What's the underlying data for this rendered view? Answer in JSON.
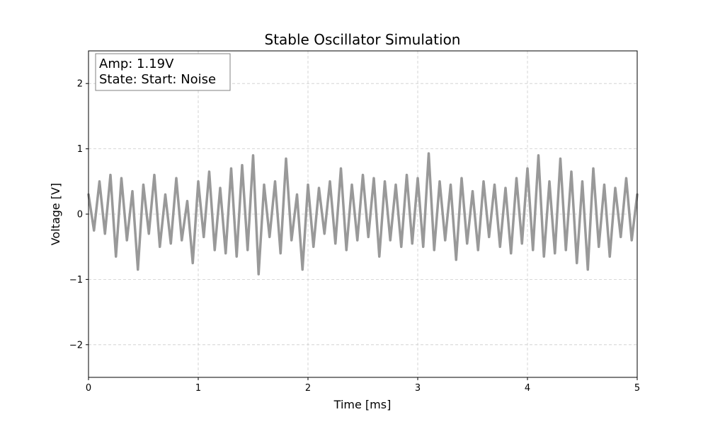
{
  "chart_data": {
    "type": "line",
    "title": "Stable Oscillator Simulation",
    "xlabel": "Time [ms]",
    "ylabel": "Voltage [V]",
    "xlim": [
      0,
      5
    ],
    "ylim": [
      -2.5,
      2.5
    ],
    "xticks": [
      0,
      1,
      2,
      3,
      4,
      5
    ],
    "yticks": [
      -2,
      -1,
      0,
      1,
      2
    ],
    "xtick_labels": [
      "0",
      "1",
      "2",
      "3",
      "4",
      "5"
    ],
    "ytick_labels": [
      "−2",
      "−1",
      "0",
      "1",
      "2"
    ],
    "grid": true,
    "line_color": "#999999",
    "annotation": {
      "line1": "Amp: 1.19V",
      "line2": "State: Start: Noise"
    },
    "series": [
      {
        "x": [
          0,
          0.05,
          0.1,
          0.15,
          0.2,
          0.25,
          0.3,
          0.35,
          0.4,
          0.45,
          0.5,
          0.55,
          0.6,
          0.65,
          0.7,
          0.75,
          0.8,
          0.85,
          0.9,
          0.95,
          1.0,
          1.05,
          1.1,
          1.15,
          1.2,
          1.25,
          1.3,
          1.35,
          1.4,
          1.45,
          1.5,
          1.55,
          1.6,
          1.65,
          1.7,
          1.75,
          1.8,
          1.85,
          1.9,
          1.95,
          2.0,
          2.05,
          2.1,
          2.15,
          2.2,
          2.25,
          2.3,
          2.35,
          2.4,
          2.45,
          2.5,
          2.55,
          2.6,
          2.65,
          2.7,
          2.75,
          2.8,
          2.85,
          2.9,
          2.95,
          3.0,
          3.05,
          3.1,
          3.15,
          3.2,
          3.25,
          3.3,
          3.35,
          3.4,
          3.45,
          3.5,
          3.55,
          3.6,
          3.65,
          3.7,
          3.75,
          3.8,
          3.85,
          3.9,
          3.95,
          4.0,
          4.05,
          4.1,
          4.15,
          4.2,
          4.25,
          4.3,
          4.35,
          4.4,
          4.45,
          4.5,
          4.55,
          4.6,
          4.65,
          4.7,
          4.75,
          4.8,
          4.85,
          4.9,
          4.95,
          5.0
        ],
        "values": [
          0.3,
          -0.25,
          0.5,
          -0.3,
          0.6,
          -0.65,
          0.55,
          -0.4,
          0.35,
          -0.85,
          0.45,
          -0.3,
          0.6,
          -0.5,
          0.3,
          -0.45,
          0.55,
          -0.4,
          0.2,
          -0.75,
          0.5,
          -0.35,
          0.65,
          -0.55,
          0.4,
          -0.6,
          0.7,
          -0.65,
          0.75,
          -0.55,
          0.9,
          -0.92,
          0.45,
          -0.35,
          0.5,
          -0.6,
          0.85,
          -0.4,
          0.3,
          -0.85,
          0.45,
          -0.5,
          0.4,
          -0.3,
          0.5,
          -0.45,
          0.7,
          -0.55,
          0.45,
          -0.4,
          0.6,
          -0.35,
          0.55,
          -0.65,
          0.5,
          -0.4,
          0.45,
          -0.5,
          0.6,
          -0.45,
          0.55,
          -0.5,
          0.93,
          -0.55,
          0.5,
          -0.4,
          0.45,
          -0.7,
          0.55,
          -0.45,
          0.35,
          -0.55,
          0.5,
          -0.35,
          0.45,
          -0.5,
          0.4,
          -0.6,
          0.55,
          -0.45,
          0.7,
          -0.55,
          0.9,
          -0.65,
          0.5,
          -0.6,
          0.85,
          -0.55,
          0.65,
          -0.75,
          0.5,
          -0.85,
          0.7,
          -0.5,
          0.45,
          -0.65,
          0.4,
          -0.35,
          0.55,
          -0.4,
          0.3
        ]
      }
    ]
  }
}
